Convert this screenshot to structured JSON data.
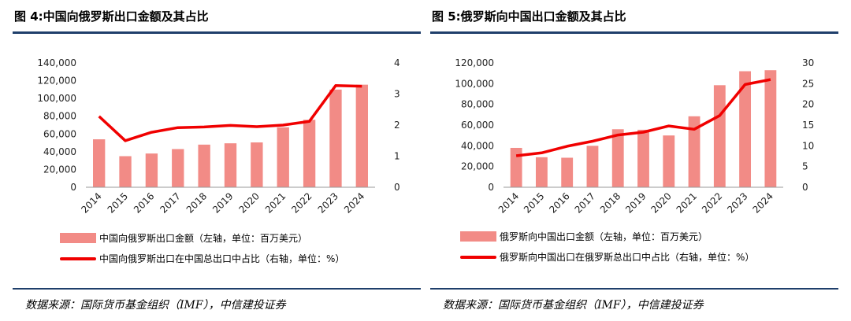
{
  "chart_data": [
    {
      "type": "bar+line",
      "title": "图 4:中国向俄罗斯出口金额及其占比",
      "categories": [
        "2014",
        "2015",
        "2016",
        "2017",
        "2018",
        "2019",
        "2020",
        "2021",
        "2022",
        "2023",
        "2024"
      ],
      "series": [
        {
          "name": "中国向俄罗斯出口金额（左轴，单位：百万美元）",
          "type": "bar",
          "axis": "left",
          "values": [
            54000,
            35000,
            38000,
            43000,
            48000,
            49500,
            50500,
            67500,
            76000,
            110000,
            115500
          ]
        },
        {
          "name": "中国向俄罗斯出口在中国总出口中占比（右轴，单位：%）",
          "type": "line",
          "axis": "right",
          "values": [
            2.28,
            1.5,
            1.77,
            1.92,
            1.94,
            1.99,
            1.95,
            2.0,
            2.12,
            3.27,
            3.25
          ]
        }
      ],
      "left_axis": {
        "range": [
          0,
          140000
        ],
        "ticks": [
          "0",
          "20,000",
          "40,000",
          "60,000",
          "80,000",
          "100,000",
          "120,000",
          "140,000"
        ]
      },
      "right_axis": {
        "range": [
          0,
          4
        ],
        "ticks": [
          "0",
          "1",
          "2",
          "3",
          "4"
        ]
      },
      "grid": false,
      "legend": "bottom",
      "source": "数据来源：国际货币基金组织（IMF），中信建投证券"
    },
    {
      "type": "bar+line",
      "title": "图 5:俄罗斯向中国出口金额及其占比",
      "categories": [
        "2014",
        "2015",
        "2016",
        "2017",
        "2018",
        "2019",
        "2020",
        "2021",
        "2022",
        "2023",
        "2024"
      ],
      "series": [
        {
          "name": "俄罗斯向中国出口金额（左轴，单位：百万美元）",
          "type": "bar",
          "axis": "left",
          "values": [
            38000,
            29000,
            28500,
            40000,
            56000,
            55500,
            50000,
            68500,
            98500,
            112000,
            113000
          ]
        },
        {
          "name": "俄罗斯向中国出口在俄罗斯总出口中占比（右轴，单位：%）",
          "type": "line",
          "axis": "right",
          "values": [
            7.6,
            8.3,
            9.9,
            11.1,
            12.6,
            13.3,
            14.8,
            14.0,
            17.3,
            24.8,
            26.0
          ]
        }
      ],
      "left_axis": {
        "range": [
          0,
          120000
        ],
        "ticks": [
          "0",
          "20,000",
          "40,000",
          "60,000",
          "80,000",
          "100,000",
          "120,000"
        ]
      },
      "right_axis": {
        "range": [
          0,
          30
        ],
        "ticks": [
          "0",
          "5",
          "10",
          "15",
          "20",
          "25",
          "30"
        ]
      },
      "grid": false,
      "legend": "bottom",
      "source": "数据来源：国际货币基金组织（IMF），中信建投证券"
    }
  ],
  "colors": {
    "bar": "#f28b86",
    "line": "#f00000",
    "rule": "#1f3f6b",
    "axis": "#999999"
  }
}
